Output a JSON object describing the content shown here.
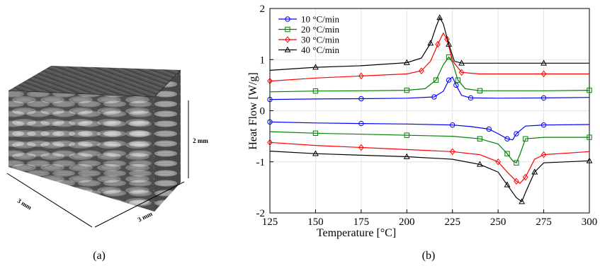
{
  "panel_a": {
    "label": "(a)",
    "dimensions": [
      "3 mm",
      "3 mm",
      "2 mm"
    ]
  },
  "panel_b": {
    "label": "(b)"
  },
  "chart_data": {
    "type": "line",
    "xlabel": "Temperature [°C]",
    "ylabel": "Heat Flow [W/g]",
    "xlim": [
      125,
      300
    ],
    "ylim": [
      -2,
      2
    ],
    "xticks": [
      125,
      150,
      175,
      200,
      225,
      250,
      275,
      300
    ],
    "yticks": [
      -2,
      -1,
      0,
      1,
      2
    ],
    "grid": true,
    "legend_position": "top-left",
    "series": [
      {
        "name": "10 °C/min",
        "color": "#0000ff",
        "marker": "circle",
        "heating": {
          "x": [
            125,
            150,
            175,
            200,
            215,
            220,
            223,
            225,
            227,
            230,
            235,
            250,
            275,
            300
          ],
          "y": [
            0.22,
            0.23,
            0.235,
            0.245,
            0.27,
            0.38,
            0.6,
            0.66,
            0.5,
            0.3,
            0.25,
            0.245,
            0.25,
            0.26
          ]
        },
        "cooling": {
          "x": [
            125,
            150,
            175,
            200,
            225,
            235,
            245,
            250,
            255,
            258,
            260,
            265,
            275,
            300
          ],
          "y": [
            -0.22,
            -0.24,
            -0.25,
            -0.26,
            -0.28,
            -0.31,
            -0.36,
            -0.45,
            -0.55,
            -0.57,
            -0.45,
            -0.3,
            -0.28,
            -0.27
          ]
        }
      },
      {
        "name": "20 °C/min",
        "color": "#008000",
        "marker": "square",
        "heating": {
          "x": [
            125,
            150,
            175,
            200,
            210,
            216,
            220,
            223,
            225,
            228,
            232,
            240,
            275,
            300
          ],
          "y": [
            0.37,
            0.385,
            0.39,
            0.4,
            0.43,
            0.6,
            0.9,
            1.05,
            0.95,
            0.6,
            0.43,
            0.39,
            0.39,
            0.4
          ]
        },
        "cooling": {
          "x": [
            125,
            150,
            175,
            200,
            225,
            240,
            250,
            255,
            258,
            260,
            262,
            265,
            275,
            300
          ],
          "y": [
            -0.41,
            -0.44,
            -0.46,
            -0.48,
            -0.5,
            -0.55,
            -0.65,
            -0.84,
            -0.98,
            -1.02,
            -0.85,
            -0.55,
            -0.52,
            -0.52
          ]
        }
      },
      {
        "name": "30 °C/min",
        "color": "#ff0000",
        "marker": "diamond",
        "heating": {
          "x": [
            125,
            150,
            175,
            200,
            208,
            213,
            217,
            220,
            222,
            225,
            230,
            240,
            275,
            300
          ],
          "y": [
            0.58,
            0.64,
            0.68,
            0.72,
            0.78,
            0.97,
            1.3,
            1.52,
            1.4,
            0.98,
            0.75,
            0.72,
            0.72,
            0.72
          ]
        },
        "cooling": {
          "x": [
            125,
            150,
            175,
            200,
            225,
            240,
            250,
            255,
            260,
            262,
            265,
            270,
            275,
            300
          ],
          "y": [
            -0.62,
            -0.68,
            -0.72,
            -0.76,
            -0.8,
            -0.86,
            -1.0,
            -1.2,
            -1.38,
            -1.42,
            -1.3,
            -0.95,
            -0.86,
            -0.8
          ]
        }
      },
      {
        "name": "40 °C/min",
        "color": "#000000",
        "marker": "triangle",
        "heating": {
          "x": [
            125,
            150,
            175,
            200,
            208,
            213,
            216,
            218,
            220,
            223,
            226,
            230,
            240,
            275,
            300
          ],
          "y": [
            0.79,
            0.85,
            0.88,
            0.94,
            1.03,
            1.32,
            1.64,
            1.82,
            1.7,
            1.3,
            0.97,
            0.93,
            0.93,
            0.93,
            0.93
          ]
        },
        "cooling": {
          "x": [
            125,
            150,
            175,
            200,
            225,
            240,
            250,
            255,
            260,
            263,
            265,
            270,
            275,
            300
          ],
          "y": [
            -0.79,
            -0.84,
            -0.87,
            -0.9,
            -0.95,
            -1.05,
            -1.2,
            -1.45,
            -1.7,
            -1.78,
            -1.6,
            -1.2,
            -1.02,
            -0.98
          ]
        }
      }
    ]
  }
}
